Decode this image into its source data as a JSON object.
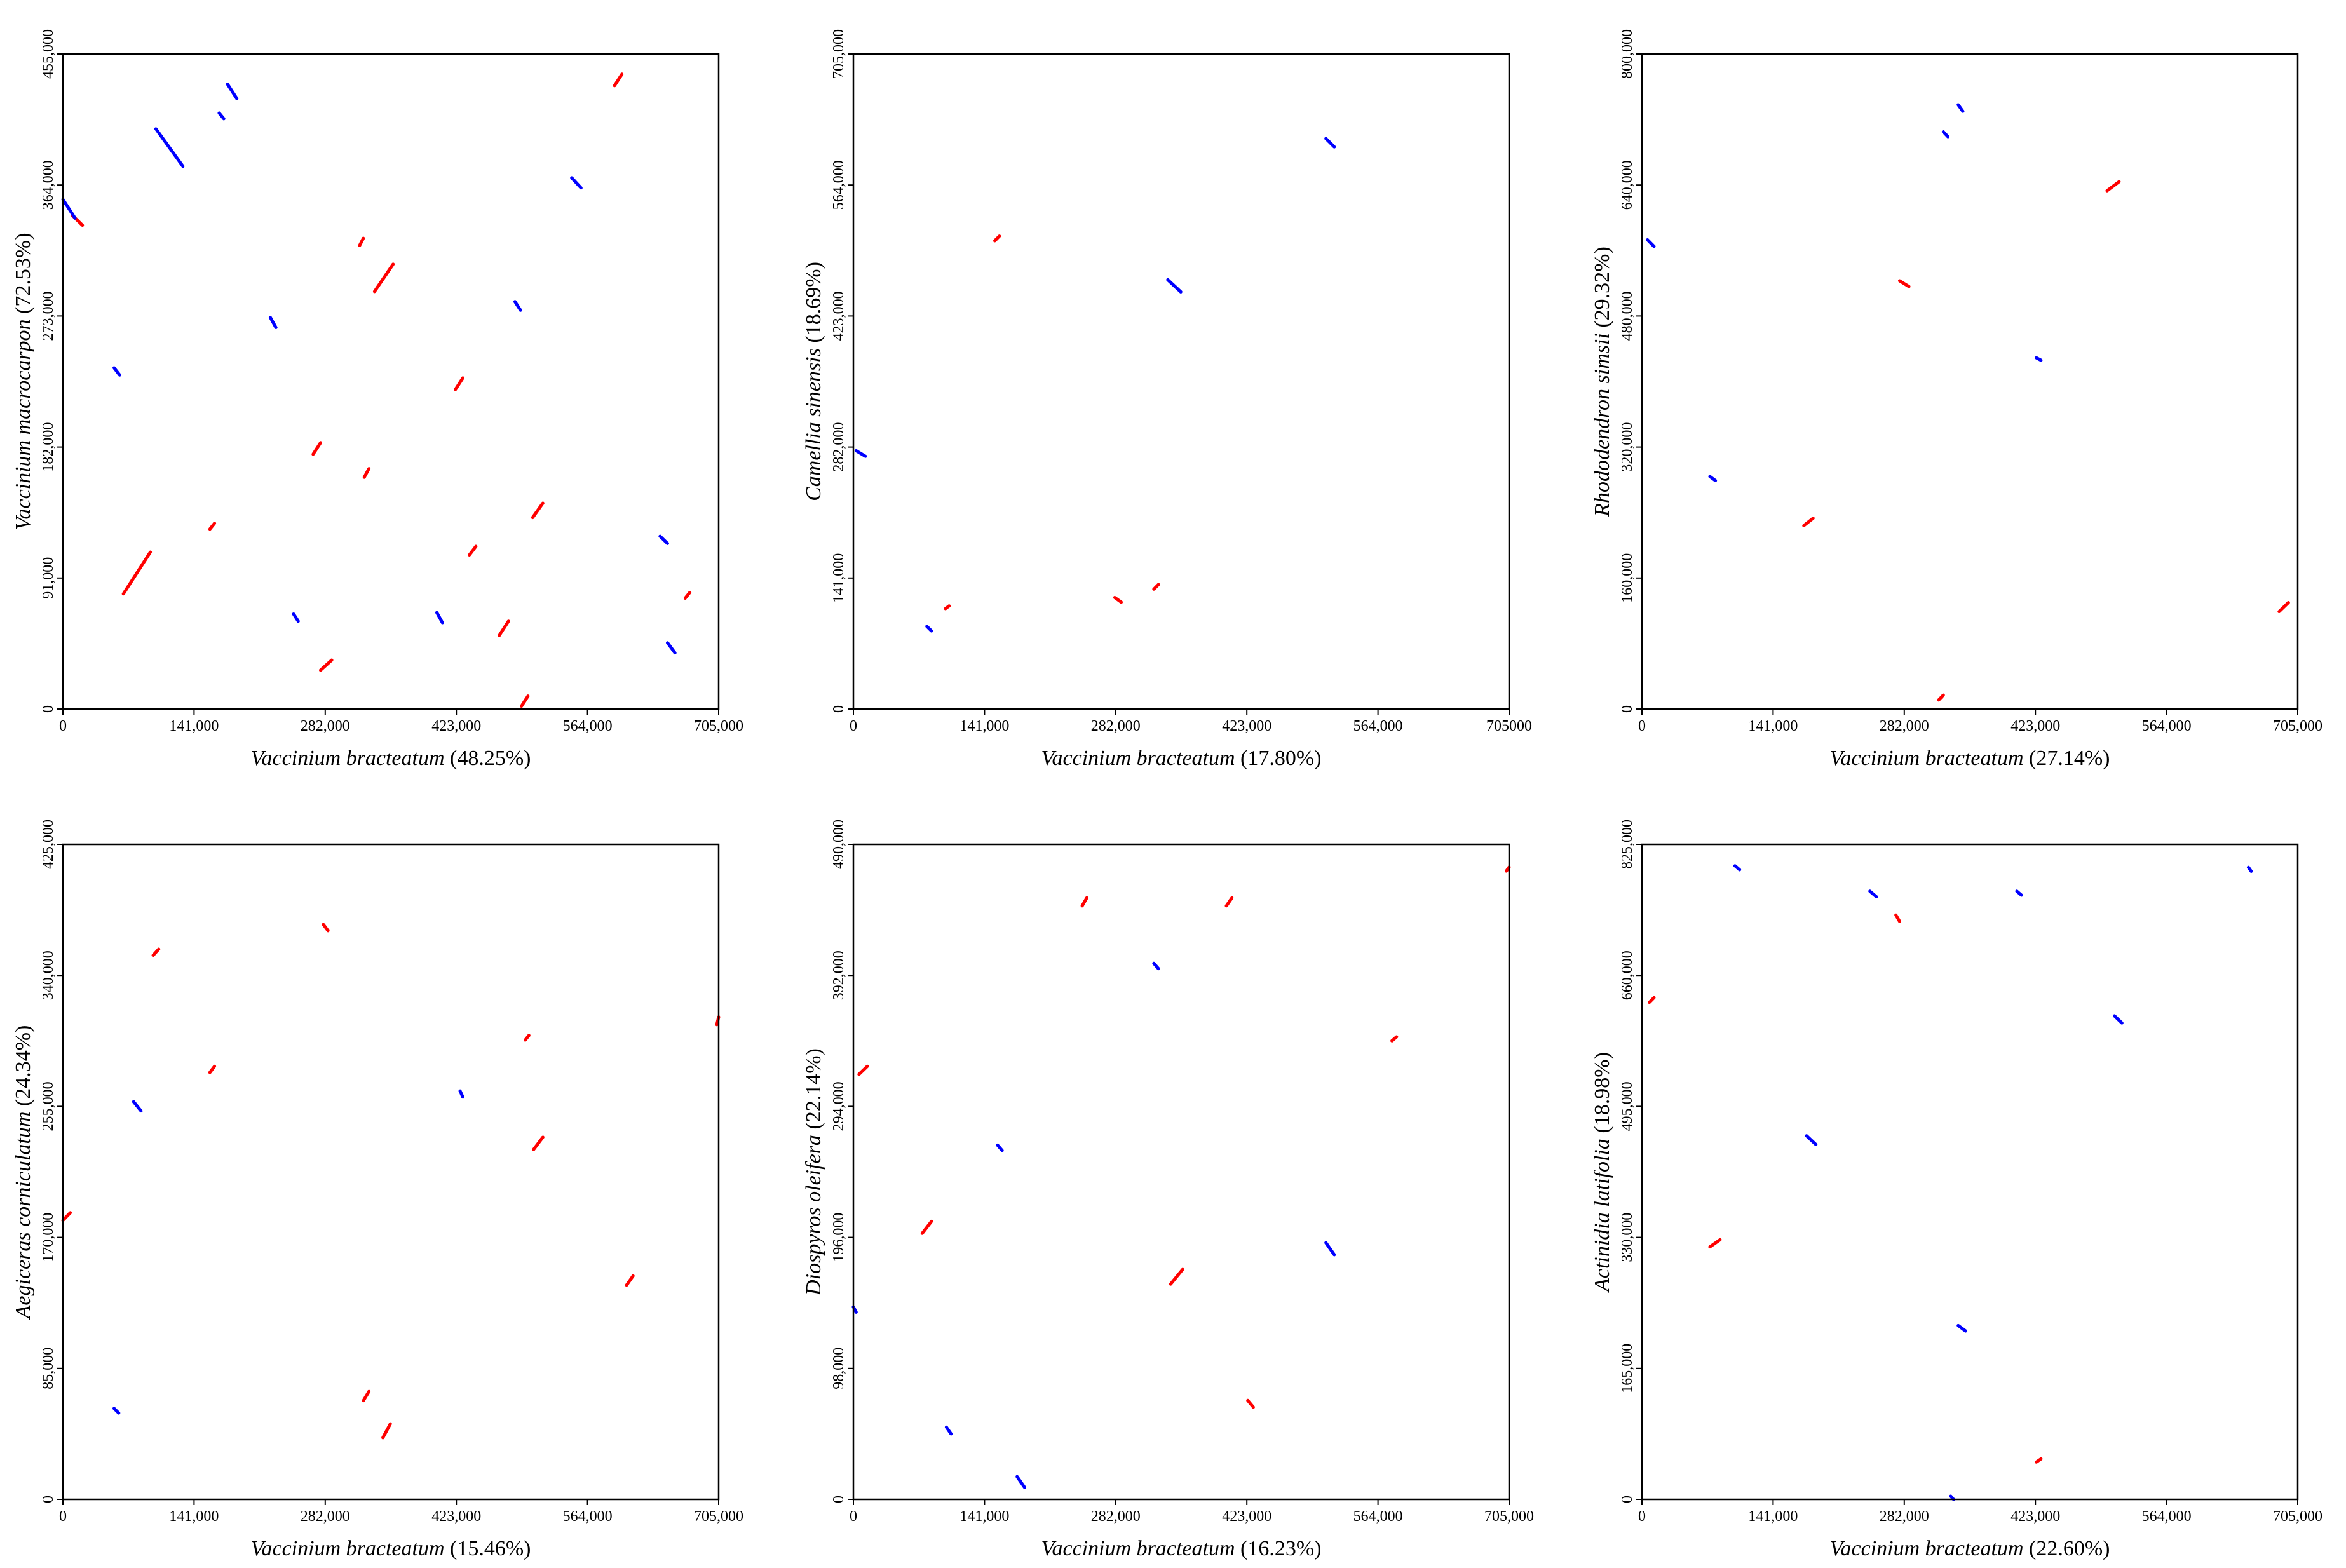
{
  "chart_data": [
    {
      "type": "dotplot",
      "x_label": "Vaccinium bracteatum",
      "x_label_share": "(48.25%)",
      "y_label": "Vaccinium macrocarpon",
      "y_label_share": "(72.53%)",
      "xlim": [
        0,
        705000
      ],
      "ylim": [
        0,
        455000
      ],
      "xticks": [
        0,
        {
          "value": 141000,
          "label": "141,000"
        },
        {
          "value": 282000,
          "label": "282,000"
        },
        {
          "value": 423000,
          "label": "423,000"
        },
        {
          "value": 564000,
          "label": "564,000"
        },
        {
          "value": 705000,
          "label": "705,000"
        }
      ],
      "yticks": [
        0,
        {
          "value": 91000,
          "label": "91,000"
        },
        {
          "value": 182000,
          "label": "182,000"
        },
        {
          "value": 273000,
          "label": "273,000"
        },
        {
          "value": 364000,
          "label": "364,000"
        },
        {
          "value": 455000,
          "label": "455,000"
        }
      ],
      "series": [
        {
          "color": "#ff0000",
          "x0": [
            65000,
            335000,
            505000,
            593000,
            277000,
            469000,
            422000,
            269000,
            319000,
            493000,
            10000,
            437000,
            669000,
            158000,
            324000
          ],
          "y0": [
            80000,
            290000,
            133000,
            433000,
            27000,
            51000,
            222000,
            177000,
            322000,
            2000,
            343000,
            107000,
            77000,
            125000,
            161000
          ],
          "x1": [
            94000,
            355000,
            516000,
            601000,
            289000,
            479000,
            430000,
            277000,
            323000,
            500000,
            21000,
            444000,
            674000,
            163000,
            329000
          ],
          "y1": [
            109000,
            309000,
            143000,
            441000,
            34000,
            61000,
            230000,
            185000,
            327000,
            9000,
            336000,
            113000,
            81000,
            129000,
            167000
          ]
        },
        {
          "color": "#0000ff",
          "x0": [
            100000,
            177000,
            168000,
            0,
            547000,
            223000,
            486000,
            55000,
            642000,
            650000,
            402000,
            248000
          ],
          "y0": [
            403000,
            434000,
            414000,
            354000,
            369000,
            272000,
            283000,
            237000,
            120000,
            46000,
            67000,
            66000
          ],
          "x1": [
            129000,
            187000,
            173000,
            13000,
            557000,
            229000,
            492000,
            61000,
            650000,
            658000,
            408000,
            253000
          ],
          "y1": [
            377000,
            424000,
            410000,
            341000,
            362000,
            265000,
            277000,
            232000,
            115000,
            39000,
            60000,
            61000
          ]
        }
      ]
    },
    {
      "type": "dotplot",
      "x_label": "Vaccinium bracteatum",
      "x_label_share": "(17.80%)",
      "y_label": "Camellia sinensis",
      "y_label_share": "(18.69%)",
      "xlim": [
        0,
        705000
      ],
      "ylim": [
        0,
        705000
      ],
      "xticks": [
        0,
        {
          "value": 141000,
          "label": "141,000"
        },
        {
          "value": 282000,
          "label": "282,000"
        },
        {
          "value": 423000,
          "label": "423,000"
        },
        {
          "value": 564000,
          "label": "564,000"
        },
        705000
      ],
      "yticks": [
        0,
        {
          "value": 141000,
          "label": "141,000"
        },
        {
          "value": 282000,
          "label": "282,000"
        },
        {
          "value": 423000,
          "label": "423,000"
        },
        {
          "value": 564000,
          "label": "564,000"
        },
        {
          "value": 705000,
          "label": "705,000"
        }
      ],
      "series": [
        {
          "color": "#ff0000",
          "x0": [
            152000,
            281000,
            323000,
            99000
          ],
          "y0": [
            504000,
            120000,
            129000,
            108000
          ],
          "x1": [
            157000,
            288000,
            328000,
            103000
          ],
          "y1": [
            509000,
            115000,
            134000,
            111000
          ]
        },
        {
          "color": "#0000ff",
          "x0": [
            338000,
            508000,
            3000,
            79000
          ],
          "y0": [
            462000,
            614000,
            278000,
            89000
          ],
          "x1": [
            352000,
            517000,
            13000,
            84000
          ],
          "y1": [
            449000,
            605000,
            272000,
            84000
          ]
        }
      ]
    },
    {
      "type": "dotplot",
      "x_label": "Vaccinium bracteatum",
      "x_label_share": "(27.14%)",
      "y_label": "Rhododendron simsii",
      "y_label_share": "(29.32%)",
      "xlim": [
        0,
        705000
      ],
      "ylim": [
        0,
        800000
      ],
      "xticks": [
        0,
        {
          "value": 141000,
          "label": "141,000"
        },
        {
          "value": 282000,
          "label": "282,000"
        },
        {
          "value": 423000,
          "label": "423,000"
        },
        {
          "value": 564000,
          "label": "564,000"
        },
        {
          "value": 705000,
          "label": "705,000"
        }
      ],
      "yticks": [
        0,
        {
          "value": 160000,
          "label": "160,000"
        },
        {
          "value": 320000,
          "label": "320,000"
        },
        {
          "value": 480000,
          "label": "480,000"
        },
        {
          "value": 640000,
          "label": "640,000"
        },
        {
          "value": 800000,
          "label": "800,000"
        }
      ],
      "series": [
        {
          "color": "#ff0000",
          "x0": [
            500000,
            277000,
            174000,
            685000,
            319000
          ],
          "y0": [
            633000,
            523000,
            224000,
            119000,
            11000
          ],
          "x1": [
            513000,
            287000,
            184000,
            695000,
            324000
          ],
          "y1": [
            644000,
            516000,
            233000,
            130000,
            17000
          ]
        },
        {
          "color": "#0000ff",
          "x0": [
            340000,
            324000,
            6000,
            73000,
            424000
          ],
          "y0": [
            738000,
            705000,
            573000,
            284000,
            429000
          ],
          "x1": [
            345000,
            329000,
            13000,
            79000,
            429000
          ],
          "y1": [
            730000,
            699000,
            565000,
            279000,
            426000
          ]
        }
      ]
    },
    {
      "type": "dotplot",
      "x_label": "Vaccinium bracteatum",
      "x_label_share": "(15.46%)",
      "y_label": "Aegiceras corniculatum",
      "y_label_share": "(24.34%)",
      "xlim": [
        0,
        705000
      ],
      "ylim": [
        0,
        425000
      ],
      "xticks": [
        0,
        {
          "value": 141000,
          "label": "141,000"
        },
        {
          "value": 282000,
          "label": "282,000"
        },
        {
          "value": 423000,
          "label": "423,000"
        },
        {
          "value": 564000,
          "label": "564,000"
        },
        {
          "value": 705000,
          "label": "705,000"
        }
      ],
      "yticks": [
        0,
        {
          "value": 85000,
          "label": "85,000"
        },
        {
          "value": 170000,
          "label": "170,000"
        },
        {
          "value": 255000,
          "label": "255,000"
        },
        {
          "value": 340000,
          "label": "340,000"
        },
        {
          "value": 425000,
          "label": "425,000"
        }
      ],
      "series": [
        {
          "color": "#ff0000",
          "x0": [
            506000,
            323000,
            344000,
            158000,
            703000,
            0,
            97000,
            606000,
            497000,
            280000
          ],
          "y0": [
            227000,
            64000,
            40000,
            277000,
            308000,
            181000,
            353000,
            139000,
            298000,
            373000
          ],
          "x1": [
            516000,
            329000,
            352000,
            163000,
            705000,
            8000,
            103000,
            613000,
            501000,
            285000
          ],
          "y1": [
            235000,
            70000,
            49000,
            281000,
            313000,
            186000,
            357000,
            145000,
            301000,
            369000
          ]
        },
        {
          "color": "#0000ff",
          "x0": [
            76000,
            427000,
            55000
          ],
          "y0": [
            258000,
            265000,
            59000
          ],
          "x1": [
            84000,
            430000,
            60000
          ],
          "y1": [
            252000,
            261000,
            56000
          ]
        }
      ]
    },
    {
      "type": "dotplot",
      "x_label": "Vaccinium bracteatum",
      "x_label_share": "(16.23%)",
      "y_label": "Diospyros oleifera",
      "y_label_share": "(22.14%)",
      "xlim": [
        0,
        705000
      ],
      "ylim": [
        0,
        490000
      ],
      "xticks": [
        0,
        {
          "value": 141000,
          "label": "141,000"
        },
        {
          "value": 282000,
          "label": "282,000"
        },
        {
          "value": 423000,
          "label": "423,000"
        },
        {
          "value": 564000,
          "label": "564,000"
        },
        {
          "value": 705000,
          "label": "705,000"
        }
      ],
      "yticks": [
        0,
        {
          "value": 98000,
          "label": "98,000"
        },
        {
          "value": 196000,
          "label": "196,000"
        },
        {
          "value": 294000,
          "label": "294,000"
        },
        {
          "value": 392000,
          "label": "392,000"
        },
        {
          "value": 490000,
          "label": "490,000"
        }
      ],
      "series": [
        {
          "color": "#ff0000",
          "x0": [
            341000,
            74000,
            6000,
            246000,
            401000,
            424000,
            702000,
            579000
          ],
          "y0": [
            161000,
            199000,
            318000,
            444000,
            444000,
            74000,
            470000,
            343000
          ],
          "x1": [
            354000,
            84000,
            15000,
            251000,
            407000,
            430000,
            705000,
            584000
          ],
          "y1": [
            172000,
            208000,
            324000,
            450000,
            450000,
            69000,
            473000,
            346000
          ]
        },
        {
          "color": "#0000ff",
          "x0": [
            176000,
            508000,
            323000,
            155000,
            0,
            100000
          ],
          "y0": [
            17000,
            192000,
            401000,
            265000,
            144000,
            54000
          ],
          "x1": [
            184000,
            517000,
            328000,
            160000,
            3000,
            105000
          ],
          "y1": [
            9000,
            183000,
            397000,
            261000,
            140000,
            49000
          ]
        }
      ]
    },
    {
      "type": "dotplot",
      "x_label": "Vaccinium bracteatum",
      "x_label_share": "(22.60%)",
      "y_label": "Actinidia latifolia",
      "y_label_share": "(18.98%)",
      "xlim": [
        0,
        705000
      ],
      "ylim": [
        0,
        825000
      ],
      "xticks": [
        0,
        {
          "value": 141000,
          "label": "141,000"
        },
        {
          "value": 282000,
          "label": "282,000"
        },
        {
          "value": 423000,
          "label": "423,000"
        },
        {
          "value": 564000,
          "label": "564,000"
        },
        {
          "value": 705000,
          "label": "705,000"
        }
      ],
      "yticks": [
        0,
        {
          "value": 165000,
          "label": "165,000"
        },
        {
          "value": 330000,
          "label": "330,000"
        },
        {
          "value": 495000,
          "label": "495,000"
        },
        {
          "value": 660000,
          "label": "660,000"
        },
        {
          "value": 825000,
          "label": "825,000"
        }
      ],
      "series": [
        {
          "color": "#ff0000",
          "x0": [
            73000,
            8000,
            273000,
            424000
          ],
          "y0": [
            318000,
            626000,
            736000,
            47000
          ],
          "x1": [
            84000,
            13000,
            277000,
            429000
          ],
          "y1": [
            327000,
            632000,
            728000,
            51000
          ]
        },
        {
          "color": "#0000ff",
          "x0": [
            177000,
            508000,
            340000,
            245000,
            403000,
            100000,
            652000,
            332000
          ],
          "y0": [
            458000,
            609000,
            219000,
            766000,
            766000,
            798000,
            796000,
            4000
          ],
          "x1": [
            187000,
            516000,
            348000,
            252000,
            408000,
            105000,
            655000,
            335000
          ],
          "y1": [
            447000,
            600000,
            212000,
            759000,
            761000,
            793000,
            791000,
            0
          ]
        }
      ]
    }
  ]
}
